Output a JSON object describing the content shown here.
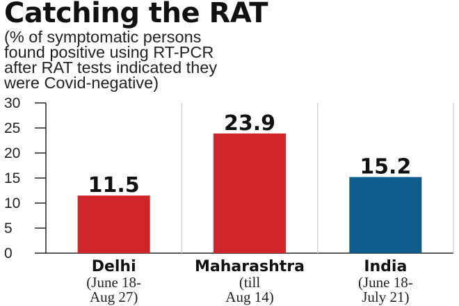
{
  "title": "Catching the RAT",
  "subtitle_lines": [
    "(% of symptomatic persons",
    "found positive using RT-PCR",
    "after RAT tests indicated they",
    "were Covid-negative)"
  ],
  "colors": {
    "red_bar": "#d1232a",
    "blue_bar": "#0f5b8c",
    "grid": "#cfcfcf",
    "axis": "#222222"
  },
  "chart_data": {
    "type": "bar",
    "categories": [
      {
        "name": "Delhi",
        "note_lines": [
          "(June 18-",
          "Aug 27)"
        ]
      },
      {
        "name": "Maharashtra",
        "note_lines": [
          "(till",
          "Aug 14)"
        ]
      },
      {
        "name": "India",
        "note_lines": [
          "(June 18-",
          "July 21)"
        ]
      }
    ],
    "values": [
      11.5,
      23.9,
      15.2
    ],
    "value_labels": [
      "11.5",
      "23.9",
      "15.2"
    ],
    "bar_colors": [
      "#d1232a",
      "#d1232a",
      "#0f5b8c"
    ],
    "ylim": [
      0,
      30
    ],
    "yticks": [
      0,
      5,
      10,
      15,
      20,
      25,
      30
    ],
    "grid": "vertical separators",
    "xlabel": "",
    "ylabel": ""
  }
}
